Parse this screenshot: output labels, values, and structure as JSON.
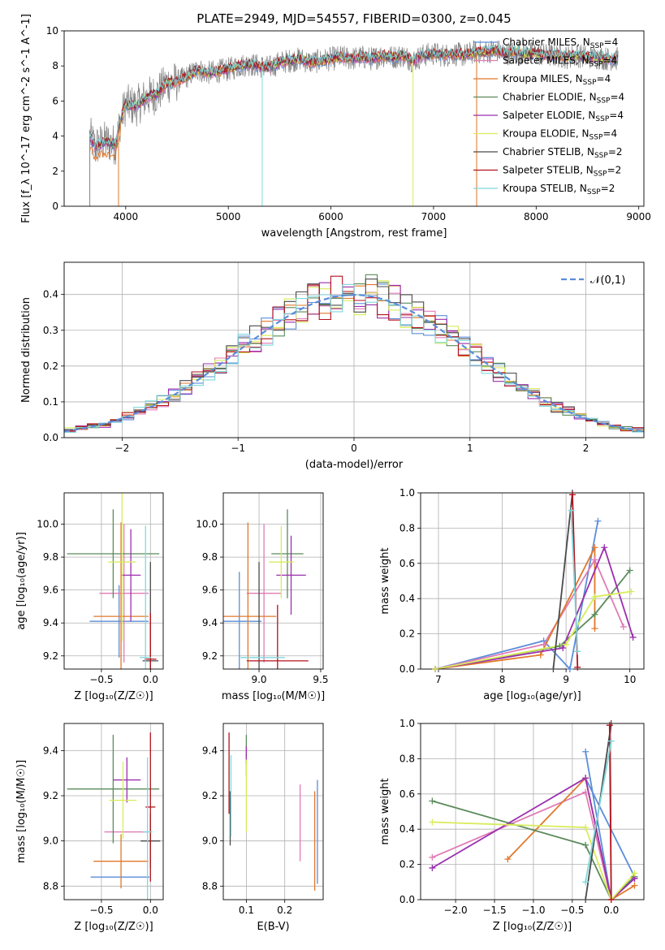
{
  "figure": {
    "title": "PLATE=2949, MJD=54557, FIBERID=0300, z=0.045"
  },
  "series": [
    {
      "name": "Chabrier MILES",
      "legend": "Chabrier MILES, N_SSP=4",
      "color": "#5b8dd9"
    },
    {
      "name": "Salpeter MILES",
      "legend": "Salpeter MILES, N_SSP=4",
      "color": "#e07bb5"
    },
    {
      "name": "Kroupa MILES",
      "legend": "Kroupa MILES, N_SSP=4",
      "color": "#e0782b"
    },
    {
      "name": "Chabrier ELODIE",
      "legend": "Chabrier ELODIE, N_SSP=4",
      "color": "#5b8a5b"
    },
    {
      "name": "Salpeter ELODIE",
      "legend": "Salpeter ELODIE, N_SSP=4",
      "color": "#9b2fae"
    },
    {
      "name": "Kroupa ELODIE",
      "legend": "Kroupa ELODIE, N_SSP=4",
      "color": "#d8ec5a"
    },
    {
      "name": "Chabrier STELIB",
      "legend": "Chabrier STELIB, N_SSP=2",
      "color": "#4a4a4a"
    },
    {
      "name": "Salpeter STELIB",
      "legend": "Salpeter STELIB, N_SSP=2",
      "color": "#b3121d"
    },
    {
      "name": "Kroupa STELIB",
      "legend": "Kroupa STELIB, N_SSP=2",
      "color": "#7fd8dc"
    }
  ],
  "chart_data": [
    {
      "id": "spectrum",
      "type": "line",
      "xlabel": "wavelength [Angstrom, rest frame]",
      "ylabel": "Flux [f_λ 10^-17 erg cm^-2 s^-1 A^-1]",
      "xlim": [
        3400,
        9050
      ],
      "ylim": [
        0,
        10
      ],
      "xticks": [
        4000,
        5000,
        6000,
        7000,
        8000,
        9000
      ],
      "yticks": [
        0,
        2,
        4,
        6,
        8,
        10
      ],
      "legend_position": "top-right",
      "data_color": "#808080",
      "model_x": [
        3650,
        3700,
        3800,
        3900,
        3950,
        4000,
        4100,
        4200,
        4300,
        4400,
        4500,
        4600,
        4700,
        4800,
        4900,
        5000,
        5100,
        5200,
        5300,
        5400,
        5500,
        5600,
        5700,
        5800,
        5900,
        6000,
        6100,
        6200,
        6300,
        6400,
        6500,
        6600,
        6700,
        6800,
        6900,
        7000,
        7100,
        7200,
        7300,
        7400,
        7500,
        7600,
        7700,
        7800,
        7900,
        8000,
        8100,
        8200,
        8300,
        8400,
        8500,
        8600,
        8700,
        8800
      ],
      "model_y": [
        4.0,
        3.4,
        3.7,
        3.5,
        4.9,
        5.8,
        5.7,
        6.2,
        6.4,
        7.0,
        7.1,
        7.4,
        7.8,
        7.6,
        7.7,
        7.8,
        8.0,
        8.1,
        8.0,
        7.9,
        8.2,
        8.3,
        8.4,
        8.2,
        8.3,
        8.4,
        8.5,
        8.4,
        8.5,
        8.4,
        8.6,
        8.5,
        8.6,
        8.3,
        8.6,
        8.7,
        8.6,
        8.7,
        8.6,
        8.8,
        8.8,
        8.9,
        8.7,
        8.8,
        8.7,
        8.7,
        8.6,
        8.6,
        8.5,
        8.6,
        8.5,
        8.5,
        8.4,
        8.4
      ]
    },
    {
      "id": "residuals",
      "type": "line",
      "xlabel": "(data-model)/error",
      "ylabel": "Normed distribution",
      "xlim": [
        -2.5,
        2.5
      ],
      "ylim": [
        0,
        0.49
      ],
      "xticks": [
        -2,
        -1,
        0,
        1,
        2
      ],
      "yticks": [
        0.0,
        0.1,
        0.2,
        0.3,
        0.4
      ],
      "legend_position": "top-right",
      "reference": {
        "label": "𝒩(0,1)",
        "mu": 0,
        "sigma": 1,
        "color": "#5b8dd9"
      }
    },
    {
      "id": "age-vs-Z",
      "type": "scatter",
      "xlabel": "Z [log₁₀(Z/Z☉)]",
      "ylabel": "age [log₁₀(age/yr)]",
      "xlim": [
        -0.88,
        0.13
      ],
      "ylim": [
        9.12,
        10.19
      ],
      "xticks": [
        -0.5,
        0.0
      ],
      "yticks": [
        9.2,
        9.4,
        9.6,
        9.8,
        10.0
      ],
      "points": [
        {
          "x": -0.32,
          "y": 9.41,
          "xerr": 0.3,
          "yerr": 0.22
        },
        {
          "x": -0.27,
          "y": 9.58,
          "xerr": 0.25,
          "yerr": 0.42
        },
        {
          "x": -0.3,
          "y": 9.44,
          "xerr": 0.28,
          "yerr": 0.57
        },
        {
          "x": -0.38,
          "y": 9.82,
          "xerr": 0.47,
          "yerr": 0.27
        },
        {
          "x": -0.2,
          "y": 9.69,
          "xerr": 0.1,
          "yerr": 0.28
        },
        {
          "x": -0.29,
          "y": 9.77,
          "xerr": 0.14,
          "yerr": 0.48
        },
        {
          "x": 0.0,
          "y": 9.17,
          "xerr": 0.08,
          "yerr": 0.6
        },
        {
          "x": 0.0,
          "y": 9.18,
          "xerr": 0.06,
          "yerr": 0.28
        },
        {
          "x": -0.05,
          "y": 9.19,
          "xerr": 0.06,
          "yerr": 0.8
        }
      ]
    },
    {
      "id": "age-vs-mass",
      "type": "scatter",
      "xlabel": "mass [log₁₀(M/M☉)]",
      "ylabel": "",
      "xlim": [
        8.71,
        9.52
      ],
      "ylim": [
        9.12,
        10.19
      ],
      "xticks": [
        9.0,
        9.5
      ],
      "yticks": [
        9.2,
        9.4,
        9.6,
        9.8,
        10.0
      ],
      "points": [
        {
          "x": 8.84,
          "y": 9.41,
          "xerr": 0.18,
          "yerr": 0.3
        },
        {
          "x": 9.04,
          "y": 9.58,
          "xerr": 0.14,
          "yerr": 0.42
        },
        {
          "x": 8.91,
          "y": 9.44,
          "xerr": 0.23,
          "yerr": 0.57
        },
        {
          "x": 9.23,
          "y": 9.82,
          "xerr": 0.13,
          "yerr": 0.27
        },
        {
          "x": 9.26,
          "y": 9.69,
          "xerr": 0.12,
          "yerr": 0.24
        },
        {
          "x": 9.18,
          "y": 9.77,
          "xerr": 0.1,
          "yerr": 0.22
        },
        {
          "x": 9.0,
          "y": 9.17,
          "xerr": 0.0,
          "yerr": 0.6
        },
        {
          "x": 9.15,
          "y": 9.17,
          "xerr": 0.25,
          "yerr": 0.34
        },
        {
          "x": 9.03,
          "y": 9.19,
          "xerr": 0.18,
          "yerr": 0.0
        }
      ]
    },
    {
      "id": "mass-weight-vs-age",
      "type": "line",
      "xlabel": "age [log₁₀(age/yr)]",
      "ylabel": "mass weight",
      "xlim": [
        6.72,
        10.22
      ],
      "ylim": [
        0,
        1
      ],
      "xticks": [
        7,
        8,
        9,
        10
      ],
      "yticks": [
        0.0,
        0.2,
        0.4,
        0.6,
        0.8,
        1.0
      ],
      "series": [
        {
          "x": [
            6.95,
            8.65,
            9.06,
            9.5
          ],
          "y": [
            0.0,
            0.16,
            0.0,
            0.84
          ]
        },
        {
          "x": [
            6.95,
            8.65,
            9.45,
            9.9
          ],
          "y": [
            0.0,
            0.14,
            0.62,
            0.24
          ]
        },
        {
          "x": [
            6.95,
            8.6,
            9.45,
            9.45
          ],
          "y": [
            0.0,
            0.08,
            0.69,
            0.23
          ]
        },
        {
          "x": [
            6.95,
            8.9,
            9.45,
            10.0
          ],
          "y": [
            0.0,
            0.13,
            0.31,
            0.56
          ]
        },
        {
          "x": [
            6.95,
            8.95,
            9.6,
            10.05
          ],
          "y": [
            0.0,
            0.12,
            0.69,
            0.18
          ]
        },
        {
          "x": [
            6.95,
            9.0,
            9.45,
            10.02
          ],
          "y": [
            0.0,
            0.14,
            0.41,
            0.44
          ]
        },
        {
          "x": [
            8.8,
            9.1
          ],
          "y": [
            0.0,
            1.0
          ]
        },
        {
          "x": [
            9.1,
            9.18
          ],
          "y": [
            0.99,
            0.01
          ]
        },
        {
          "x": [
            9.08,
            9.18
          ],
          "y": [
            0.9,
            0.1
          ]
        }
      ]
    },
    {
      "id": "mass-vs-Z",
      "type": "scatter",
      "xlabel": "Z [log₁₀(Z/Z☉)]",
      "ylabel": "mass [log₁₀(M/M☉)]",
      "xlim": [
        -0.88,
        0.13
      ],
      "ylim": [
        8.74,
        9.52
      ],
      "xticks": [
        -0.5,
        0.0
      ],
      "yticks": [
        8.8,
        9.0,
        9.2,
        9.4
      ],
      "points": [
        {
          "x": -0.31,
          "y": 8.84,
          "xerr": 0.3,
          "yerr": 0.0
        },
        {
          "x": -0.25,
          "y": 9.04,
          "xerr": 0.22,
          "yerr": 0.0
        },
        {
          "x": -0.3,
          "y": 8.91,
          "xerr": 0.28,
          "yerr": 0.12
        },
        {
          "x": -0.38,
          "y": 9.23,
          "xerr": 0.47,
          "yerr": 0.24
        },
        {
          "x": -0.24,
          "y": 9.27,
          "xerr": 0.14,
          "yerr": 0.1
        },
        {
          "x": -0.28,
          "y": 9.18,
          "xerr": 0.14,
          "yerr": 0.17
        },
        {
          "x": 0.0,
          "y": 9.0,
          "xerr": 0.1,
          "yerr": 0.12
        },
        {
          "x": 0.0,
          "y": 9.15,
          "xerr": 0.05,
          "yerr": 0.33
        },
        {
          "x": -0.03,
          "y": 9.04,
          "xerr": 0.05,
          "yerr": 0.33
        }
      ]
    },
    {
      "id": "mass-vs-EBV",
      "type": "scatter",
      "xlabel": "E(B-V)",
      "ylabel": "",
      "xlim": [
        0.04,
        0.3
      ],
      "ylim": [
        8.74,
        9.52
      ],
      "xticks": [
        0.1,
        0.2
      ],
      "yticks": [
        8.8,
        9.0,
        9.2,
        9.4
      ],
      "points": [
        {
          "x": 0.285,
          "y": 9.04,
          "xerr": 0.0,
          "yerr": 0.23
        },
        {
          "x": 0.24,
          "y": 9.08,
          "xerr": 0.0,
          "yerr": 0.17
        },
        {
          "x": 0.278,
          "y": 9.0,
          "xerr": 0.0,
          "yerr": 0.22
        },
        {
          "x": 0.1,
          "y": 9.38,
          "xerr": 0.0,
          "yerr": 0.09
        },
        {
          "x": 0.1,
          "y": 9.38,
          "xerr": 0.0,
          "yerr": 0.04
        },
        {
          "x": 0.1,
          "y": 9.2,
          "xerr": 0.0,
          "yerr": 0.16
        },
        {
          "x": 0.058,
          "y": 9.1,
          "xerr": 0.0,
          "yerr": 0.12
        },
        {
          "x": 0.055,
          "y": 9.3,
          "xerr": 0.0,
          "yerr": 0.18
        },
        {
          "x": 0.06,
          "y": 9.2,
          "xerr": 0.0,
          "yerr": 0.18
        }
      ]
    },
    {
      "id": "mass-weight-vs-Z",
      "type": "line",
      "xlabel": "Z [log₁₀(Z/Z☉)]",
      "ylabel": "mass weight",
      "xlim": [
        -2.45,
        0.42
      ],
      "ylim": [
        0,
        1
      ],
      "xticks": [
        -2.0,
        -1.5,
        -1.0,
        -0.5,
        0.0
      ],
      "yticks": [
        0.0,
        0.2,
        0.4,
        0.6,
        0.8,
        1.0
      ],
      "series": [
        {
          "x": [
            -0.33,
            0.0,
            0.3,
            -0.33
          ],
          "y": [
            0.84,
            0.0,
            0.13,
            0.69
          ]
        },
        {
          "x": [
            -2.3,
            -0.33,
            0.0,
            0.3
          ],
          "y": [
            0.24,
            0.61,
            0.0,
            0.12
          ]
        },
        {
          "x": [
            -1.33,
            -0.33,
            0.0,
            0.3
          ],
          "y": [
            0.23,
            0.69,
            0.0,
            0.08
          ]
        },
        {
          "x": [
            -2.3,
            -0.33,
            0.0,
            0.3
          ],
          "y": [
            0.56,
            0.31,
            0.0,
            0.13
          ]
        },
        {
          "x": [
            -2.3,
            -0.33,
            0.0,
            0.3
          ],
          "y": [
            0.18,
            0.69,
            0.0,
            0.12
          ]
        },
        {
          "x": [
            -2.3,
            -0.33,
            0.0,
            0.3
          ],
          "y": [
            0.44,
            0.41,
            0.0,
            0.15
          ]
        },
        {
          "x": [
            -0.33,
            0.0
          ],
          "y": [
            0.0,
            1.0
          ]
        },
        {
          "x": [
            0.0,
            -0.02
          ],
          "y": [
            0.0,
            0.99
          ]
        },
        {
          "x": [
            -0.33,
            0.0
          ],
          "y": [
            0.1,
            0.9
          ]
        }
      ]
    }
  ]
}
